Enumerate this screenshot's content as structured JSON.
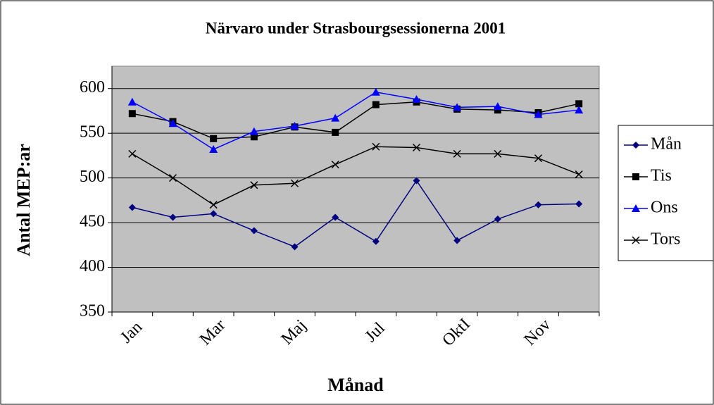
{
  "chart_data": {
    "type": "line",
    "title": "Närvaro under Strasbourgsessionerna 2001",
    "x_label": "Månad",
    "y_label": "Antal MEP:ar",
    "categories": [
      "Jan",
      null,
      "Mar",
      null,
      "Maj",
      null,
      "Jul",
      null,
      "OktI",
      null,
      "Nov",
      null
    ],
    "series": [
      {
        "name": "Mån",
        "color": "#000080",
        "marker": "diamond",
        "values": [
          467,
          456,
          460,
          441,
          423,
          456,
          429,
          497,
          430,
          454,
          470,
          471
        ]
      },
      {
        "name": "Tis",
        "color": "#000000",
        "marker": "square",
        "values": [
          572,
          563,
          544,
          546,
          557,
          551,
          582,
          585,
          577,
          576,
          573,
          583
        ]
      },
      {
        "name": "Ons",
        "color": "#0000ff",
        "marker": "triangle",
        "values": [
          585,
          561,
          532,
          552,
          558,
          567,
          596,
          588,
          579,
          580,
          571,
          576
        ]
      },
      {
        "name": "Tors",
        "color": "#000000",
        "marker": "cross",
        "values": [
          527,
          500,
          470,
          492,
          494,
          515,
          535,
          534,
          527,
          527,
          522,
          504
        ]
      }
    ],
    "ylim": [
      350,
      625
    ],
    "yticks": [
      350,
      400,
      450,
      500,
      550,
      600
    ],
    "grid": true,
    "legend": "right"
  }
}
